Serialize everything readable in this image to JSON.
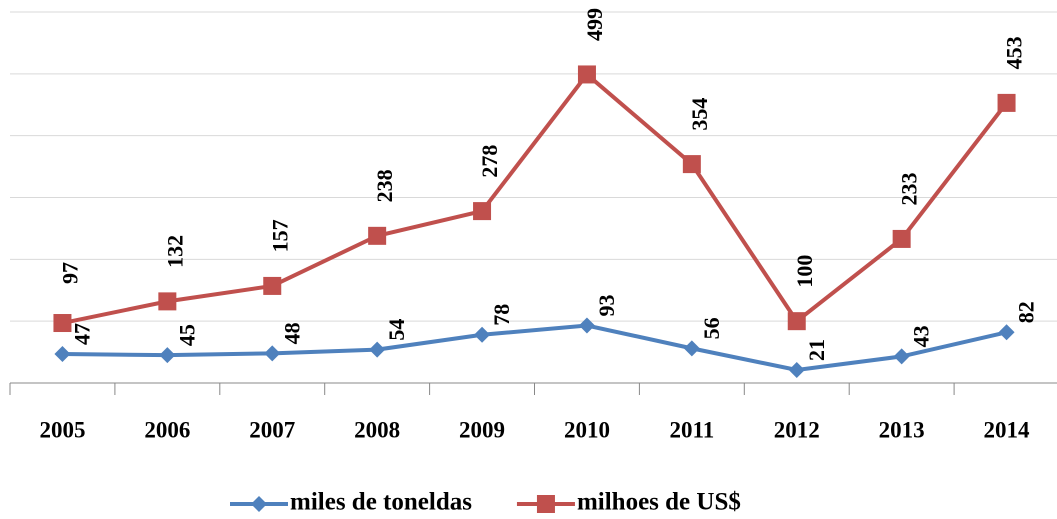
{
  "chart_data": {
    "type": "line",
    "categories": [
      "2005",
      "2006",
      "2007",
      "2008",
      "2009",
      "2010",
      "2011",
      "2012",
      "2013",
      "2014"
    ],
    "series": [
      {
        "name": "miles de toneldas",
        "color": "#4f81bd",
        "marker": "diamond",
        "values": [
          47,
          45,
          48,
          54,
          78,
          93,
          56,
          21,
          43,
          82
        ]
      },
      {
        "name": "milhoes de US$",
        "color": "#c0504d",
        "marker": "square",
        "values": [
          97,
          132,
          157,
          238,
          278,
          499,
          354,
          100,
          233,
          453
        ]
      }
    ],
    "ylim": [
      0,
      600
    ],
    "yticks": [
      0,
      100,
      200,
      300,
      400,
      500,
      600
    ],
    "grid": true,
    "legend": "bottom"
  }
}
